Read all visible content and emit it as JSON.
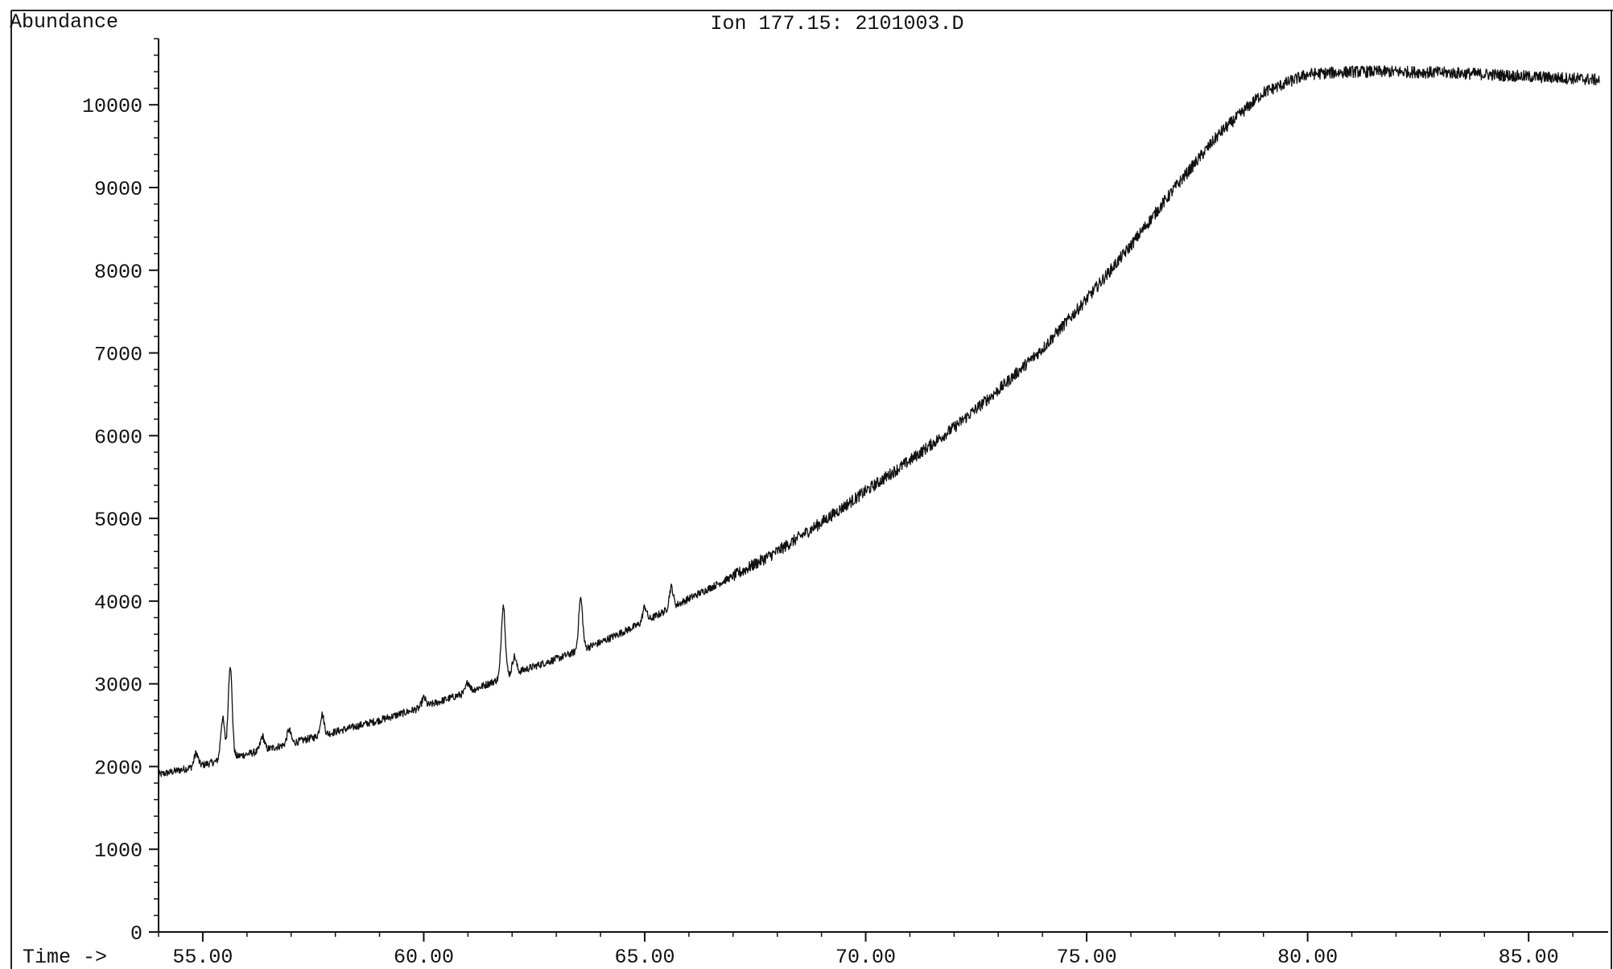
{
  "ylabel": "Abundance",
  "title": "Ion 177.15: 2101003.D",
  "xlabel": "Time ->",
  "chart_data": {
    "type": "line",
    "title": "Ion 177.15: 2101003.D",
    "xlabel": "Time ->",
    "ylabel": "Abundance",
    "xlim": [
      54.0,
      86.8
    ],
    "ylim": [
      0,
      10800
    ],
    "grid": false,
    "x_ticks": [
      55,
      60,
      65,
      70,
      75,
      80,
      85
    ],
    "x_tick_labels": [
      "55.00",
      "60.00",
      "65.00",
      "70.00",
      "75.00",
      "80.00",
      "85.00"
    ],
    "y_ticks": [
      0,
      1000,
      2000,
      3000,
      4000,
      5000,
      6000,
      7000,
      8000,
      9000,
      10000
    ],
    "y_tick_labels": [
      "0",
      "1000",
      "2000",
      "3000",
      "4000",
      "5000",
      "6000",
      "7000",
      "8000",
      "9000",
      "10000"
    ],
    "series": [
      {
        "color": "#111111",
        "baseline": {
          "x": [
            54.0,
            55.0,
            56.0,
            57.0,
            58.0,
            59.0,
            60.0,
            61.0,
            62.0,
            63.0,
            64.0,
            65.0,
            66.0,
            67.0,
            68.0,
            69.0,
            70.0,
            71.0,
            72.0,
            73.0,
            74.0,
            75.0,
            76.0,
            77.0,
            78.0,
            79.0,
            80.0,
            81.0,
            82.0,
            83.0,
            84.0,
            85.0,
            86.0,
            86.6
          ],
          "y": [
            1900,
            2020,
            2150,
            2280,
            2420,
            2560,
            2720,
            2900,
            3120,
            3300,
            3500,
            3750,
            4030,
            4300,
            4600,
            4950,
            5330,
            5700,
            6100,
            6550,
            7050,
            7650,
            8300,
            9000,
            9650,
            10150,
            10370,
            10400,
            10400,
            10390,
            10370,
            10340,
            10320,
            10300
          ]
        },
        "peaks": [
          {
            "x": 54.85,
            "height": 160
          },
          {
            "x": 55.45,
            "height": 500
          },
          {
            "x": 55.62,
            "height": 1130
          },
          {
            "x": 56.35,
            "height": 170
          },
          {
            "x": 56.95,
            "height": 170
          },
          {
            "x": 57.7,
            "height": 250
          },
          {
            "x": 60.0,
            "height": 110
          },
          {
            "x": 61.0,
            "height": 120
          },
          {
            "x": 61.8,
            "height": 880
          },
          {
            "x": 62.05,
            "height": 200
          },
          {
            "x": 63.55,
            "height": 620
          },
          {
            "x": 65.0,
            "height": 180
          },
          {
            "x": 65.6,
            "height": 250
          }
        ],
        "noise_amplitude": 45
      }
    ]
  }
}
